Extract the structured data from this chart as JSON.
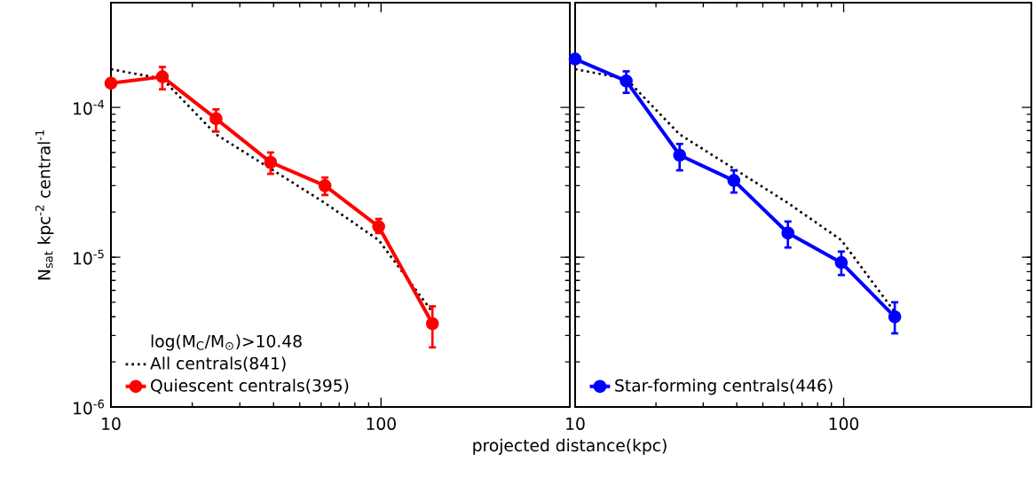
{
  "chart_data": [
    {
      "type": "line",
      "log": "xy",
      "xlim": [
        10,
        500
      ],
      "ylim": [
        1e-06,
        0.0005
      ],
      "xticks": [
        10,
        100
      ],
      "yticks": [
        {
          "value": 1e-06,
          "label": "10$^{-6}$"
        },
        {
          "value": 1e-05,
          "label": "10$^{-5}$"
        },
        {
          "value": 0.0001,
          "label": "10$^{-4}$"
        }
      ],
      "xlabel": "projected distance(kpc)",
      "ylabel": "N$_{sat}$ kpc$^{-2}$ central$^{-1}$",
      "legend": "bottom left",
      "legend_title": "log(M$_{C}$/M$_{⊙}$)>10.48",
      "x": [
        10,
        15.5,
        24.5,
        39,
        62,
        98,
        155
      ],
      "series": [
        {
          "name": "All centrals(841)",
          "color": "#000000",
          "line_style": "dotted",
          "marker": "none",
          "values": [
            0.00018,
            0.000155,
            6.6e-05,
            3.9e-05,
            2.3e-05,
            1.3e-05,
            4.3e-06
          ]
        },
        {
          "name": "Quiescent centrals(395)",
          "color": "#ff0000",
          "line_style": "solid",
          "marker": "circle",
          "values": [
            0.000145,
            0.00016,
            8.4e-05,
            4.3e-05,
            3e-05,
            1.6e-05,
            3.6e-06
          ],
          "errors": [
            null,
            [
              0.000132,
              0.000186
            ],
            [
              6.9e-05,
              9.7e-05
            ],
            [
              3.6e-05,
              5e-05
            ],
            [
              2.6e-05,
              3.4e-05
            ],
            [
              1.45e-05,
              1.8e-05
            ],
            [
              2.5e-06,
              4.7e-06
            ]
          ]
        }
      ]
    },
    {
      "type": "line",
      "log": "xy",
      "xlim": [
        10,
        500
      ],
      "ylim": [
        1e-06,
        0.0005
      ],
      "xticks": [
        10,
        100
      ],
      "yticks": [
        {
          "value": 1e-06,
          "label": null
        },
        {
          "value": 1e-05,
          "label": null
        },
        {
          "value": 0.0001,
          "label": null
        }
      ],
      "tick_labels": "x",
      "legend": "bottom left",
      "x": [
        10,
        15.5,
        24.5,
        39,
        62,
        98,
        155
      ],
      "series": [
        {
          "color": "#000000",
          "line_style": "dotted",
          "marker": "none",
          "values": [
            0.00018,
            0.000155,
            6.6e-05,
            3.9e-05,
            2.3e-05,
            1.3e-05,
            4.3e-06
          ]
        },
        {
          "name": "Star-forming centrals(446)",
          "color": "#0000ff",
          "line_style": "solid",
          "marker": "circle",
          "values": [
            0.00021,
            0.00015,
            4.8e-05,
            3.25e-05,
            1.45e-05,
            9.2e-06,
            4e-06
          ],
          "errors": [
            null,
            [
              0.000125,
              0.000174
            ],
            [
              3.8e-05,
              5.7e-05
            ],
            [
              2.7e-05,
              3.8e-05
            ],
            [
              1.16e-05,
              1.73e-05
            ],
            [
              7.6e-06,
              1.09e-05
            ],
            [
              3.1e-06,
              5e-06
            ]
          ]
        }
      ]
    }
  ]
}
